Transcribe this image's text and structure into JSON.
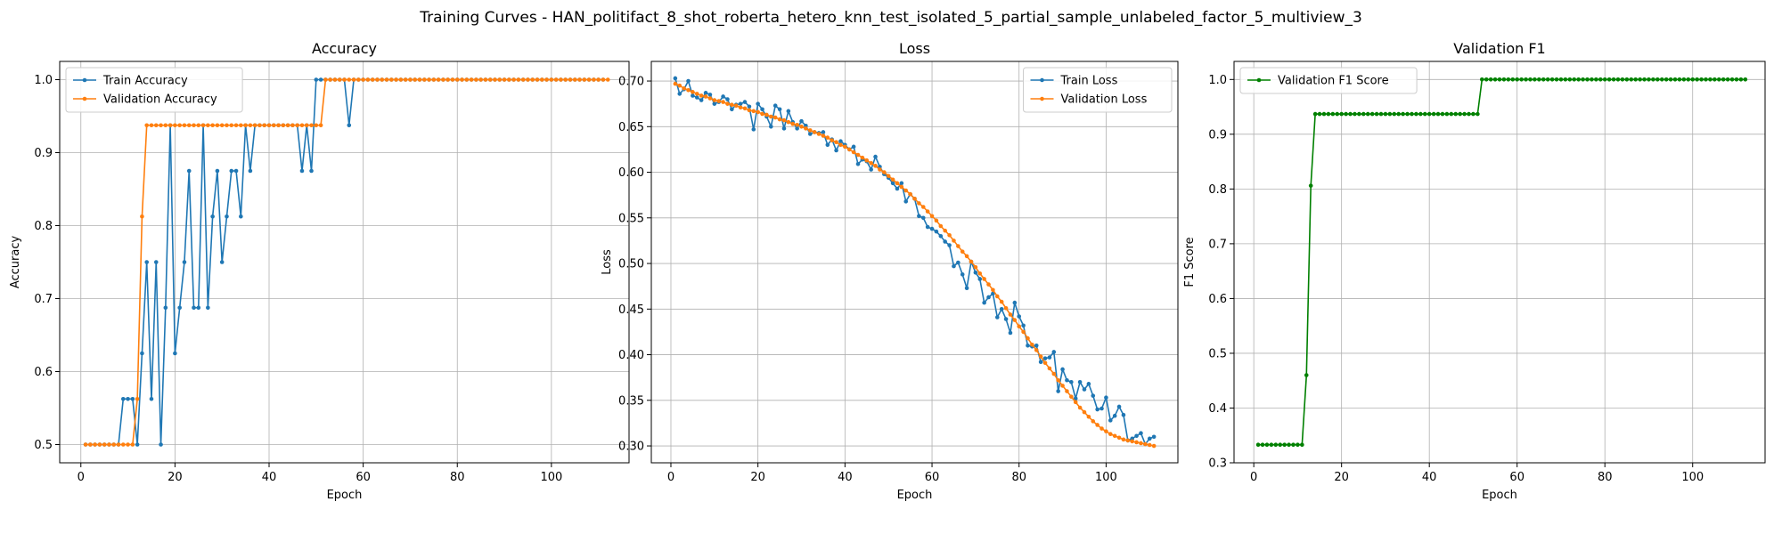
{
  "figure": {
    "suptitle": "Training Curves - HAN_politifact_8_shot_roberta_hetero_knn_test_isolated_5_partial_sample_unlabeled_factor_5_multiview_3"
  },
  "chart_data": [
    {
      "type": "line",
      "title": "Accuracy",
      "xlabel": "Epoch",
      "ylabel": "Accuracy",
      "xlim": [
        -4.5,
        116.5
      ],
      "ylim": [
        0.475,
        1.025
      ],
      "xticks": [
        0,
        20,
        40,
        60,
        80,
        100
      ],
      "yticks": [
        0.5,
        0.6,
        0.7,
        0.8,
        0.9,
        1.0
      ],
      "ytick_labels": [
        "0.5",
        "0.6",
        "0.7",
        "0.8",
        "0.9",
        "1.0"
      ],
      "grid": true,
      "legend": "upper-left",
      "x_start": 1,
      "series": [
        {
          "name": "Train Accuracy",
          "color": "#1f77b4",
          "values": [
            0.5,
            0.5,
            0.5,
            0.5,
            0.5,
            0.5,
            0.5,
            0.5,
            0.5625,
            0.5625,
            0.5625,
            0.5,
            0.625,
            0.75,
            0.5625,
            0.75,
            0.5,
            0.6875,
            0.9375,
            0.625,
            0.6875,
            0.75,
            0.875,
            0.6875,
            0.6875,
            0.9375,
            0.6875,
            0.8125,
            0.875,
            0.75,
            0.8125,
            0.875,
            0.875,
            0.8125,
            0.9375,
            0.875,
            0.9375,
            0.9375,
            0.9375,
            0.9375,
            0.9375,
            0.9375,
            0.9375,
            0.9375,
            0.9375,
            0.9375,
            0.875,
            0.9375,
            0.875,
            1.0,
            1.0,
            1.0,
            1.0,
            1.0,
            1.0,
            1.0,
            0.9375,
            1.0,
            1.0,
            1.0,
            1.0,
            1.0,
            1.0,
            1.0,
            1.0,
            1.0,
            1.0,
            1.0,
            1.0,
            1.0,
            1.0,
            1.0,
            1.0,
            1.0,
            1.0,
            1.0,
            1.0,
            1.0,
            1.0,
            1.0,
            1.0,
            1.0,
            1.0,
            1.0,
            1.0,
            1.0,
            1.0,
            1.0,
            1.0,
            1.0,
            1.0,
            1.0,
            1.0,
            1.0,
            1.0,
            1.0,
            1.0,
            1.0,
            1.0,
            1.0,
            1.0,
            1.0,
            1.0,
            1.0,
            1.0,
            1.0,
            1.0,
            1.0,
            1.0,
            1.0,
            1.0
          ]
        },
        {
          "name": "Validation Accuracy",
          "color": "#ff7f0e",
          "values": [
            0.5,
            0.5,
            0.5,
            0.5,
            0.5,
            0.5,
            0.5,
            0.5,
            0.5,
            0.5,
            0.5,
            0.5625,
            0.8125,
            0.9375,
            0.9375,
            0.9375,
            0.9375,
            0.9375,
            0.9375,
            0.9375,
            0.9375,
            0.9375,
            0.9375,
            0.9375,
            0.9375,
            0.9375,
            0.9375,
            0.9375,
            0.9375,
            0.9375,
            0.9375,
            0.9375,
            0.9375,
            0.9375,
            0.9375,
            0.9375,
            0.9375,
            0.9375,
            0.9375,
            0.9375,
            0.9375,
            0.9375,
            0.9375,
            0.9375,
            0.9375,
            0.9375,
            0.9375,
            0.9375,
            0.9375,
            0.9375,
            0.9375,
            1.0,
            1.0,
            1.0,
            1.0,
            1.0,
            1.0,
            1.0,
            1.0,
            1.0,
            1.0,
            1.0,
            1.0,
            1.0,
            1.0,
            1.0,
            1.0,
            1.0,
            1.0,
            1.0,
            1.0,
            1.0,
            1.0,
            1.0,
            1.0,
            1.0,
            1.0,
            1.0,
            1.0,
            1.0,
            1.0,
            1.0,
            1.0,
            1.0,
            1.0,
            1.0,
            1.0,
            1.0,
            1.0,
            1.0,
            1.0,
            1.0,
            1.0,
            1.0,
            1.0,
            1.0,
            1.0,
            1.0,
            1.0,
            1.0,
            1.0,
            1.0,
            1.0,
            1.0,
            1.0,
            1.0,
            1.0,
            1.0,
            1.0,
            1.0,
            1.0,
            1.0
          ]
        }
      ]
    },
    {
      "type": "line",
      "title": "Loss",
      "xlabel": "Epoch",
      "ylabel": "Loss",
      "xlim": [
        -4.5,
        116.5
      ],
      "ylim": [
        0.2815,
        0.7215
      ],
      "xticks": [
        0,
        20,
        40,
        60,
        80,
        100
      ],
      "yticks": [
        0.3,
        0.35,
        0.4,
        0.45,
        0.5,
        0.55,
        0.6,
        0.65,
        0.7
      ],
      "ytick_labels": [
        "0.30",
        "0.35",
        "0.40",
        "0.45",
        "0.50",
        "0.55",
        "0.60",
        "0.65",
        "0.70"
      ],
      "grid": true,
      "legend": "upper-right",
      "x_start": 1,
      "series": [
        {
          "name": "Train Loss",
          "color": "#1f77b4",
          "values": [
            0.703,
            0.686,
            0.691,
            0.7,
            0.684,
            0.682,
            0.679,
            0.687,
            0.685,
            0.675,
            0.677,
            0.683,
            0.68,
            0.669,
            0.674,
            0.675,
            0.677,
            0.672,
            0.647,
            0.675,
            0.669,
            0.661,
            0.65,
            0.673,
            0.669,
            0.648,
            0.667,
            0.655,
            0.648,
            0.656,
            0.651,
            0.642,
            0.644,
            0.643,
            0.644,
            0.63,
            0.636,
            0.624,
            0.634,
            0.63,
            0.625,
            0.628,
            0.609,
            0.614,
            0.612,
            0.603,
            0.617,
            0.606,
            0.598,
            0.594,
            0.588,
            0.582,
            0.588,
            0.568,
            0.576,
            0.571,
            0.552,
            0.55,
            0.54,
            0.538,
            0.535,
            0.53,
            0.524,
            0.52,
            0.497,
            0.501,
            0.488,
            0.473,
            0.502,
            0.49,
            0.483,
            0.457,
            0.463,
            0.467,
            0.441,
            0.45,
            0.439,
            0.424,
            0.457,
            0.442,
            0.432,
            0.41,
            0.409,
            0.41,
            0.392,
            0.396,
            0.397,
            0.403,
            0.36,
            0.384,
            0.372,
            0.37,
            0.352,
            0.37,
            0.362,
            0.368,
            0.355,
            0.34,
            0.341,
            0.353,
            0.328,
            0.333,
            0.343,
            0.334,
            0.306,
            0.308,
            0.311,
            0.314,
            0.302,
            0.308,
            0.31
          ]
        },
        {
          "name": "Validation Loss",
          "color": "#ff7f0e",
          "values": [
            0.697,
            0.695,
            0.692,
            0.69,
            0.688,
            0.686,
            0.684,
            0.683,
            0.681,
            0.679,
            0.678,
            0.677,
            0.675,
            0.674,
            0.673,
            0.671,
            0.67,
            0.668,
            0.667,
            0.666,
            0.664,
            0.663,
            0.661,
            0.66,
            0.658,
            0.657,
            0.655,
            0.653,
            0.652,
            0.65,
            0.648,
            0.646,
            0.644,
            0.642,
            0.64,
            0.638,
            0.635,
            0.633,
            0.63,
            0.628,
            0.625,
            0.622,
            0.619,
            0.616,
            0.613,
            0.61,
            0.607,
            0.603,
            0.6,
            0.596,
            0.592,
            0.588,
            0.584,
            0.58,
            0.576,
            0.571,
            0.566,
            0.562,
            0.557,
            0.552,
            0.547,
            0.541,
            0.536,
            0.531,
            0.525,
            0.519,
            0.513,
            0.508,
            0.502,
            0.496,
            0.489,
            0.483,
            0.477,
            0.471,
            0.464,
            0.458,
            0.451,
            0.444,
            0.438,
            0.431,
            0.425,
            0.418,
            0.411,
            0.405,
            0.398,
            0.391,
            0.385,
            0.379,
            0.372,
            0.366,
            0.36,
            0.354,
            0.348,
            0.342,
            0.337,
            0.332,
            0.327,
            0.323,
            0.319,
            0.316,
            0.313,
            0.311,
            0.309,
            0.307,
            0.306,
            0.305,
            0.304,
            0.303,
            0.302,
            0.301,
            0.3
          ]
        }
      ]
    },
    {
      "type": "line",
      "title": "Validation F1",
      "xlabel": "Epoch",
      "ylabel": "F1 Score",
      "xlim": [
        -4.5,
        116.5
      ],
      "ylim": [
        0.3,
        1.033
      ],
      "xticks": [
        0,
        20,
        40,
        60,
        80,
        100
      ],
      "yticks": [
        0.3,
        0.4,
        0.5,
        0.6,
        0.7,
        0.8,
        0.9,
        1.0
      ],
      "ytick_labels": [
        "0.3",
        "0.4",
        "0.5",
        "0.6",
        "0.7",
        "0.8",
        "0.9",
        "1.0"
      ],
      "grid": true,
      "legend": "upper-left",
      "x_start": 1,
      "series": [
        {
          "name": "Validation F1 Score",
          "color": "#008000",
          "values": [
            0.333,
            0.333,
            0.333,
            0.333,
            0.333,
            0.333,
            0.333,
            0.333,
            0.333,
            0.333,
            0.333,
            0.46,
            0.806,
            0.937,
            0.937,
            0.937,
            0.937,
            0.937,
            0.937,
            0.937,
            0.937,
            0.937,
            0.937,
            0.937,
            0.937,
            0.937,
            0.937,
            0.937,
            0.937,
            0.937,
            0.937,
            0.937,
            0.937,
            0.937,
            0.937,
            0.937,
            0.937,
            0.937,
            0.937,
            0.937,
            0.937,
            0.937,
            0.937,
            0.937,
            0.937,
            0.937,
            0.937,
            0.937,
            0.937,
            0.937,
            0.937,
            1.0,
            1.0,
            1.0,
            1.0,
            1.0,
            1.0,
            1.0,
            1.0,
            1.0,
            1.0,
            1.0,
            1.0,
            1.0,
            1.0,
            1.0,
            1.0,
            1.0,
            1.0,
            1.0,
            1.0,
            1.0,
            1.0,
            1.0,
            1.0,
            1.0,
            1.0,
            1.0,
            1.0,
            1.0,
            1.0,
            1.0,
            1.0,
            1.0,
            1.0,
            1.0,
            1.0,
            1.0,
            1.0,
            1.0,
            1.0,
            1.0,
            1.0,
            1.0,
            1.0,
            1.0,
            1.0,
            1.0,
            1.0,
            1.0,
            1.0,
            1.0,
            1.0,
            1.0,
            1.0,
            1.0,
            1.0,
            1.0,
            1.0,
            1.0,
            1.0,
            1.0
          ]
        }
      ]
    }
  ]
}
